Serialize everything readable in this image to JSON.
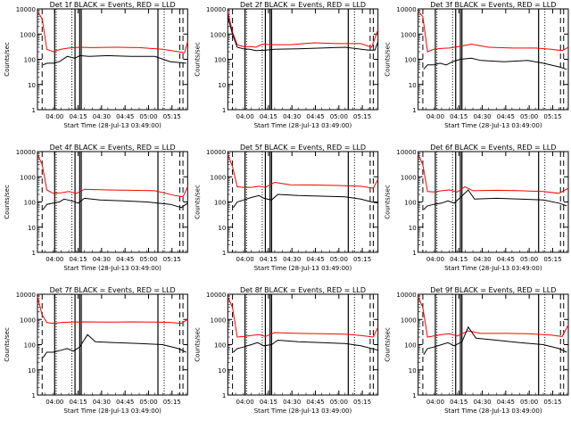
{
  "chart_data": {
    "type": "line",
    "layout": "3x3 grid of panels",
    "title_template": "Det {det}f BLACK = Events, RED = LLD",
    "xlabel": "Start Time (28-Jul-13 03:49:00)",
    "ylabel": "Counts/sec",
    "y_scale": "log",
    "ylim": [
      1,
      10000
    ],
    "y_ticks": [
      "1",
      "10",
      "100",
      "1000",
      "10000"
    ],
    "xlim": [
      "03:49",
      "05:25"
    ],
    "x_ticks": [
      "04:00",
      "04:15",
      "04:30",
      "04:45",
      "05:00",
      "05:15"
    ],
    "series_colors": {
      "events": "#000000",
      "lld": "#ff0000"
    },
    "markers": {
      "solid_lines": [
        "04:00",
        "04:13",
        "04:16",
        "04:17",
        "05:06"
      ],
      "dotted_lines": [
        "04:01",
        "04:11",
        "05:10"
      ],
      "dashed_lines": [
        "03:52",
        "05:20",
        "05:22"
      ]
    },
    "panels": [
      {
        "det": "1",
        "title": "Det 1f BLACK = Events, RED = LLD",
        "events": [
          [
            3.5,
            60
          ],
          [
            6,
            70
          ],
          [
            10,
            70
          ],
          [
            14,
            80
          ],
          [
            19,
            130
          ],
          [
            24,
            110
          ],
          [
            27,
            140
          ],
          [
            33,
            130
          ],
          [
            45,
            140
          ],
          [
            60,
            130
          ],
          [
            75,
            130
          ],
          [
            85,
            80
          ],
          [
            95,
            70
          ]
        ],
        "lld": [
          [
            0,
            8000
          ],
          [
            3,
            4000
          ],
          [
            6,
            250
          ],
          [
            10,
            200
          ],
          [
            15,
            250
          ],
          [
            20,
            280
          ],
          [
            27,
            300
          ],
          [
            35,
            290
          ],
          [
            50,
            300
          ],
          [
            65,
            290
          ],
          [
            80,
            250
          ],
          [
            90,
            200
          ],
          [
            94,
            180
          ],
          [
            96,
            500
          ]
        ]
      },
      {
        "det": "2",
        "title": "Det 2f BLACK = Events, RED = LLD",
        "events": [
          [
            0,
            5000
          ],
          [
            3,
            1000
          ],
          [
            6,
            300
          ],
          [
            10,
            260
          ],
          [
            14,
            250
          ],
          [
            18,
            220
          ],
          [
            24,
            230
          ],
          [
            30,
            250
          ],
          [
            45,
            260
          ],
          [
            60,
            280
          ],
          [
            75,
            300
          ],
          [
            90,
            230
          ],
          [
            94,
            230
          ],
          [
            96,
            500
          ]
        ],
        "lld": [
          [
            0,
            8000
          ],
          [
            3,
            1200
          ],
          [
            6,
            380
          ],
          [
            10,
            320
          ],
          [
            15,
            320
          ],
          [
            18,
            300
          ],
          [
            22,
            400
          ],
          [
            28,
            380
          ],
          [
            40,
            380
          ],
          [
            55,
            450
          ],
          [
            70,
            420
          ],
          [
            85,
            420
          ],
          [
            92,
            300
          ],
          [
            96,
            1500
          ]
        ]
      },
      {
        "det": "3",
        "title": "Det 3f BLACK = Events, RED = LLD",
        "events": [
          [
            3.5,
            40
          ],
          [
            6,
            60
          ],
          [
            10,
            60
          ],
          [
            14,
            70
          ],
          [
            18,
            60
          ],
          [
            22,
            80
          ],
          [
            27,
            100
          ],
          [
            34,
            110
          ],
          [
            40,
            90
          ],
          [
            55,
            80
          ],
          [
            70,
            90
          ],
          [
            80,
            70
          ],
          [
            90,
            50
          ],
          [
            95,
            40
          ]
        ],
        "lld": [
          [
            0,
            8000
          ],
          [
            3,
            5000
          ],
          [
            6,
            200
          ],
          [
            10,
            250
          ],
          [
            15,
            270
          ],
          [
            20,
            280
          ],
          [
            27,
            330
          ],
          [
            34,
            400
          ],
          [
            45,
            300
          ],
          [
            60,
            280
          ],
          [
            75,
            280
          ],
          [
            85,
            250
          ],
          [
            92,
            220
          ],
          [
            96,
            300
          ]
        ]
      },
      {
        "det": "4",
        "title": "Det 4f BLACK = Events, RED = LLD",
        "events": [
          [
            3.5,
            50
          ],
          [
            6,
            80
          ],
          [
            10,
            90
          ],
          [
            14,
            100
          ],
          [
            17,
            130
          ],
          [
            22,
            110
          ],
          [
            26,
            90
          ],
          [
            30,
            140
          ],
          [
            40,
            120
          ],
          [
            55,
            110
          ],
          [
            70,
            100
          ],
          [
            85,
            80
          ],
          [
            92,
            60
          ],
          [
            96,
            90
          ]
        ],
        "lld": [
          [
            0,
            8000
          ],
          [
            3,
            3000
          ],
          [
            6,
            300
          ],
          [
            10,
            220
          ],
          [
            15,
            230
          ],
          [
            20,
            260
          ],
          [
            25,
            220
          ],
          [
            30,
            320
          ],
          [
            45,
            300
          ],
          [
            60,
            290
          ],
          [
            75,
            280
          ],
          [
            88,
            180
          ],
          [
            93,
            160
          ],
          [
            96,
            400
          ]
        ]
      },
      {
        "det": "5",
        "title": "Det 5f BLACK = Events, RED = LLD",
        "events": [
          [
            3.5,
            60
          ],
          [
            6,
            100
          ],
          [
            10,
            120
          ],
          [
            15,
            150
          ],
          [
            20,
            180
          ],
          [
            23,
            140
          ],
          [
            28,
            120
          ],
          [
            32,
            200
          ],
          [
            45,
            180
          ],
          [
            60,
            170
          ],
          [
            75,
            160
          ],
          [
            85,
            130
          ],
          [
            92,
            100
          ],
          [
            96,
            90
          ]
        ],
        "lld": [
          [
            0,
            8000
          ],
          [
            3,
            2500
          ],
          [
            6,
            400
          ],
          [
            10,
            380
          ],
          [
            15,
            380
          ],
          [
            20,
            420
          ],
          [
            24,
            380
          ],
          [
            30,
            600
          ],
          [
            40,
            480
          ],
          [
            55,
            470
          ],
          [
            70,
            450
          ],
          [
            85,
            420
          ],
          [
            93,
            350
          ],
          [
            96,
            800
          ]
        ]
      },
      {
        "det": "6",
        "title": "Det 6f BLACK = Events, RED = LLD",
        "events": [
          [
            3.5,
            50
          ],
          [
            6,
            70
          ],
          [
            10,
            80
          ],
          [
            15,
            90
          ],
          [
            19,
            110
          ],
          [
            23,
            90
          ],
          [
            27,
            150
          ],
          [
            32,
            300
          ],
          [
            36,
            130
          ],
          [
            50,
            140
          ],
          [
            65,
            130
          ],
          [
            80,
            120
          ],
          [
            90,
            90
          ],
          [
            95,
            70
          ]
        ],
        "lld": [
          [
            0,
            8000
          ],
          [
            3,
            3000
          ],
          [
            6,
            260
          ],
          [
            10,
            250
          ],
          [
            15,
            280
          ],
          [
            20,
            300
          ],
          [
            25,
            250
          ],
          [
            30,
            400
          ],
          [
            35,
            280
          ],
          [
            50,
            290
          ],
          [
            65,
            280
          ],
          [
            80,
            260
          ],
          [
            90,
            220
          ],
          [
            96,
            350
          ]
        ]
      },
      {
        "det": "7",
        "title": "Det 7f BLACK = Events, RED = LLD",
        "events": [
          [
            3.5,
            30
          ],
          [
            6,
            50
          ],
          [
            10,
            50
          ],
          [
            15,
            60
          ],
          [
            19,
            70
          ],
          [
            23,
            55
          ],
          [
            27,
            80
          ],
          [
            32,
            250
          ],
          [
            37,
            130
          ],
          [
            50,
            120
          ],
          [
            65,
            110
          ],
          [
            80,
            100
          ],
          [
            90,
            70
          ],
          [
            95,
            50
          ]
        ],
        "lld": [
          [
            0,
            8000
          ],
          [
            3,
            1500
          ],
          [
            6,
            750
          ],
          [
            10,
            700
          ],
          [
            15,
            750
          ],
          [
            20,
            780
          ],
          [
            30,
            800
          ],
          [
            45,
            780
          ],
          [
            60,
            800
          ],
          [
            75,
            780
          ],
          [
            85,
            760
          ],
          [
            92,
            700
          ],
          [
            96,
            1000
          ]
        ]
      },
      {
        "det": "8",
        "title": "Det 8f BLACK = Events, RED = LLD",
        "events": [
          [
            3.5,
            50
          ],
          [
            6,
            70
          ],
          [
            10,
            80
          ],
          [
            15,
            100
          ],
          [
            19,
            120
          ],
          [
            23,
            90
          ],
          [
            28,
            100
          ],
          [
            32,
            150
          ],
          [
            45,
            130
          ],
          [
            60,
            120
          ],
          [
            75,
            110
          ],
          [
            85,
            90
          ],
          [
            92,
            70
          ],
          [
            96,
            60
          ]
        ],
        "lld": [
          [
            0,
            8000
          ],
          [
            3,
            3000
          ],
          [
            6,
            200
          ],
          [
            10,
            210
          ],
          [
            15,
            230
          ],
          [
            20,
            250
          ],
          [
            24,
            210
          ],
          [
            30,
            300
          ],
          [
            45,
            280
          ],
          [
            60,
            270
          ],
          [
            75,
            260
          ],
          [
            85,
            230
          ],
          [
            93,
            200
          ],
          [
            96,
            500
          ]
        ]
      },
      {
        "det": "9",
        "title": "Det 9f BLACK = Events, RED = LLD",
        "events": [
          [
            3.5,
            40
          ],
          [
            6,
            70
          ],
          [
            10,
            80
          ],
          [
            15,
            100
          ],
          [
            19,
            120
          ],
          [
            23,
            90
          ],
          [
            28,
            130
          ],
          [
            32,
            500
          ],
          [
            37,
            180
          ],
          [
            50,
            150
          ],
          [
            65,
            120
          ],
          [
            80,
            100
          ],
          [
            90,
            70
          ],
          [
            95,
            50
          ]
        ],
        "lld": [
          [
            0,
            8000
          ],
          [
            3,
            3000
          ],
          [
            6,
            200
          ],
          [
            10,
            220
          ],
          [
            15,
            250
          ],
          [
            20,
            270
          ],
          [
            25,
            220
          ],
          [
            32,
            350
          ],
          [
            40,
            280
          ],
          [
            55,
            280
          ],
          [
            70,
            270
          ],
          [
            85,
            240
          ],
          [
            92,
            210
          ],
          [
            96,
            600
          ]
        ]
      }
    ]
  }
}
